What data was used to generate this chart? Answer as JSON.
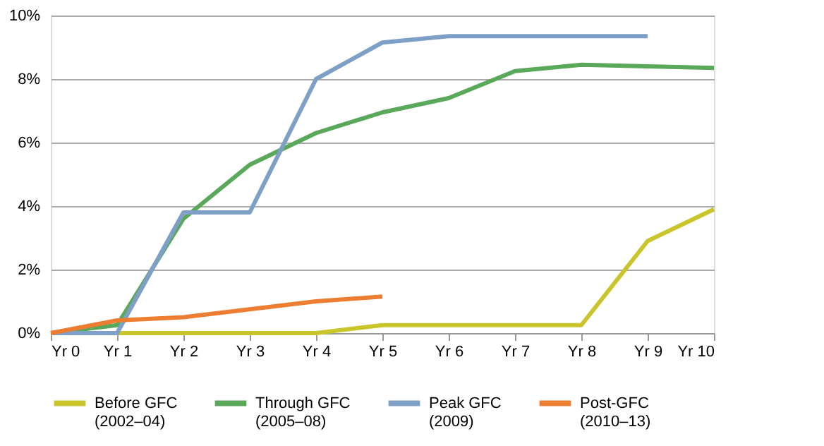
{
  "chart_data": {
    "type": "line",
    "categories": [
      "Yr 0",
      "Yr 1",
      "Yr 2",
      "Yr 3",
      "Yr 4",
      "Yr 5",
      "Yr 6",
      "Yr 7",
      "Yr 8",
      "Yr 9",
      "Yr 10"
    ],
    "series": [
      {
        "name": "Before GFC (2002–04)",
        "color": "#c9c52a",
        "values": [
          0,
          0,
          0,
          0,
          0,
          0.25,
          0.25,
          0.25,
          0.25,
          2.9,
          3.9
        ]
      },
      {
        "name": "Through GFC (2005–08)",
        "color": "#5aa85a",
        "values": [
          0,
          0.25,
          3.6,
          5.3,
          6.3,
          6.95,
          7.4,
          8.25,
          8.45,
          8.4,
          8.35
        ]
      },
      {
        "name": "Peak GFC (2009)",
        "color": "#7e9fc6",
        "values": [
          0,
          0,
          3.8,
          3.8,
          8.0,
          9.15,
          9.35,
          9.35,
          9.35,
          9.35,
          null
        ]
      },
      {
        "name": "Post-GFC (2010–13)",
        "color": "#ed7d31",
        "values": [
          0,
          0.4,
          0.5,
          0.75,
          1.0,
          1.15,
          null,
          null,
          null,
          null,
          null
        ]
      }
    ],
    "ylim": [
      0,
      10
    ],
    "yticks": [
      {
        "value": 0,
        "label": "0%"
      },
      {
        "value": 2,
        "label": "2%"
      },
      {
        "value": 4,
        "label": "4%"
      },
      {
        "value": 6,
        "label": "6%"
      },
      {
        "value": 8,
        "label": "8%"
      },
      {
        "value": 10,
        "label": "10%"
      }
    ],
    "grid": "y",
    "legend": "bottom",
    "line_style": "solid",
    "marker": "none"
  }
}
